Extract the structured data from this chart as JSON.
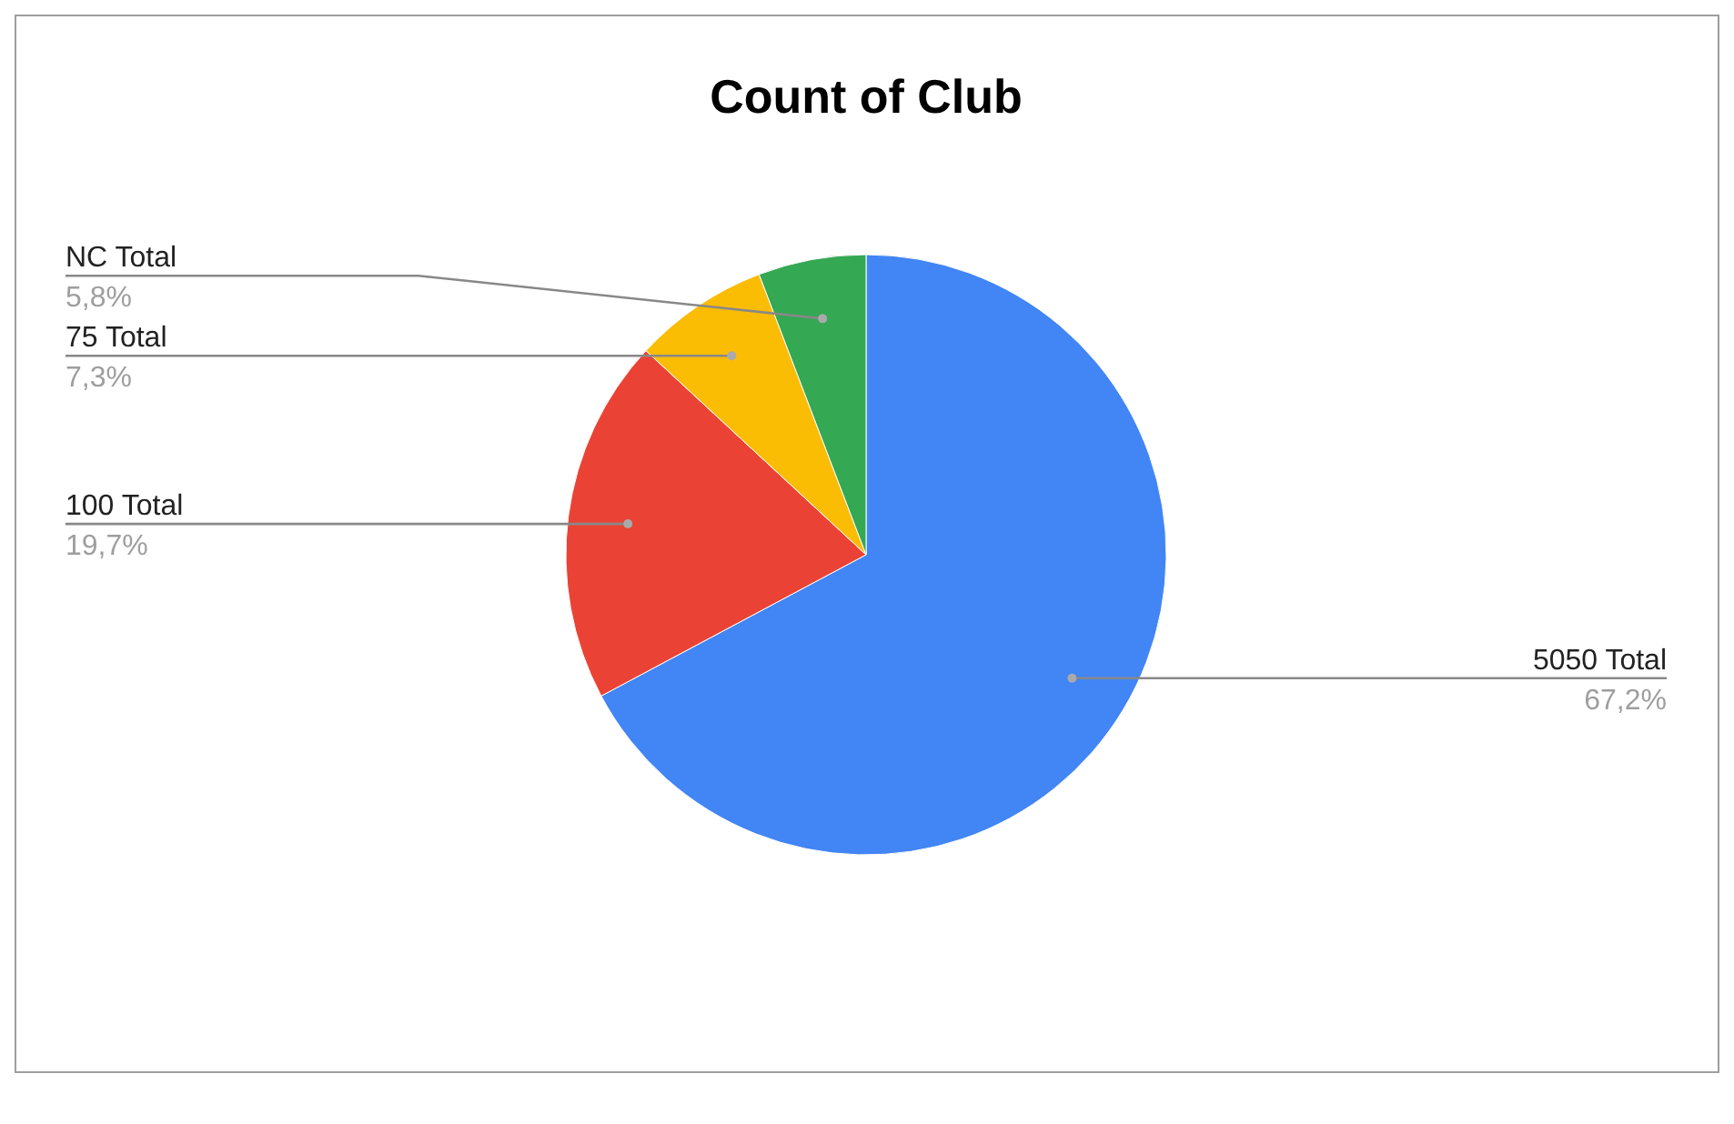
{
  "chart_data": {
    "type": "pie",
    "title": "Count of Club",
    "categories": [
      "5050 Total",
      "100 Total",
      "75 Total",
      "NC Total"
    ],
    "values": [
      67.2,
      19.7,
      7.3,
      5.8
    ],
    "value_labels": [
      "67,2%",
      "19,7%",
      "7,3%",
      "5,8%"
    ],
    "colors": [
      "#4285f4",
      "#ea4335",
      "#fbbc04",
      "#34a853"
    ]
  }
}
